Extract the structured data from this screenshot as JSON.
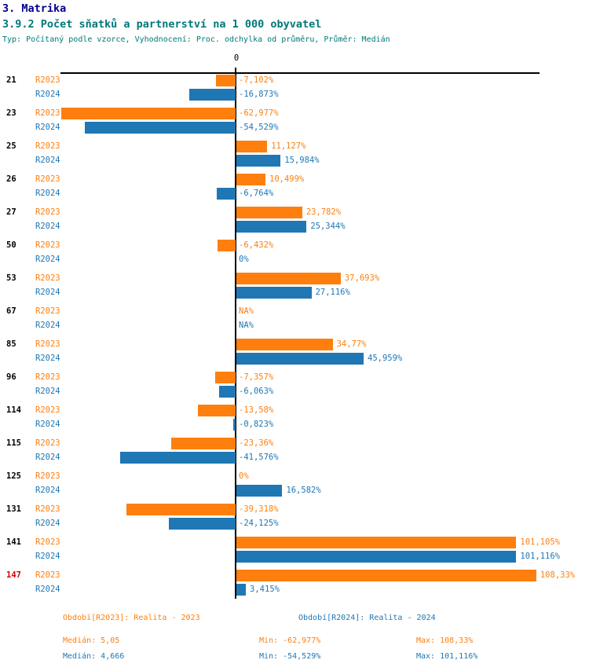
{
  "header": {
    "title": "3. Matrika",
    "subtitle": "3.9.2 Počet sňatků a partnerství na 1 000 obyvatel",
    "type_line": "Typ: Počítaný podle vzorce, Vyhodnocení: Proc. odchylka od průměru, Průměr: Medián"
  },
  "axis": {
    "zero_label": "0"
  },
  "chart_data": {
    "type": "bar",
    "orientation": "horizontal",
    "unit": "percent deviation from median",
    "value_format": "czech decimal comma",
    "categories": [
      "21",
      "23",
      "25",
      "26",
      "27",
      "50",
      "53",
      "67",
      "85",
      "96",
      "114",
      "115",
      "125",
      "131",
      "141",
      "147"
    ],
    "highlighted_categories": [
      "147"
    ],
    "highlight_color": "#D40000",
    "series": [
      {
        "name": "R2023",
        "period": "Realita - 2023",
        "color": "#FF7F0E",
        "values": [
          -7.102,
          -62.977,
          11.127,
          10.499,
          23.782,
          -6.432,
          37.693,
          null,
          34.77,
          -7.357,
          -13.58,
          -23.36,
          0,
          -39.318,
          101.105,
          108.33
        ],
        "labels": [
          "-7,102%",
          "-62,977%",
          "11,127%",
          "10,499%",
          "23,782%",
          "-6,432%",
          "37,693%",
          "NA%",
          "34,77%",
          "-7,357%",
          "-13,58%",
          "-23,36%",
          "0%",
          "-39,318%",
          "101,105%",
          "108,33%"
        ]
      },
      {
        "name": "R2024",
        "period": "Realita - 2024",
        "color": "#1F77B4",
        "values": [
          -16.873,
          -54.529,
          15.984,
          -6.764,
          25.344,
          0,
          27.116,
          null,
          45.959,
          -6.063,
          -0.823,
          -41.576,
          16.582,
          -24.125,
          101.116,
          3.415
        ],
        "labels": [
          "-16,873%",
          "-54,529%",
          "15,984%",
          "-6,764%",
          "25,344%",
          "0%",
          "27,116%",
          "NA%",
          "45,959%",
          "-6,063%",
          "-0,823%",
          "-41,576%",
          "16,582%",
          "-24,125%",
          "101,116%",
          "3,415%"
        ]
      }
    ],
    "x_axis": {
      "zero_tick": "0",
      "approx_range": [
        -63.2,
        109.8
      ]
    },
    "grid": false,
    "legend_position": "bottom"
  },
  "footer": {
    "period_2023": "Období[R2023]: Realita - 2023",
    "period_2024": "Období[R2024]: Realita - 2024",
    "stats_2023": {
      "median": "Medián: 5,05",
      "min": "Min: -62,977%",
      "max": "Max: 108,33%"
    },
    "stats_2024": {
      "median": "Medián: 4,666",
      "min": "Min: -54,529%",
      "max": "Max: 101,116%"
    }
  }
}
